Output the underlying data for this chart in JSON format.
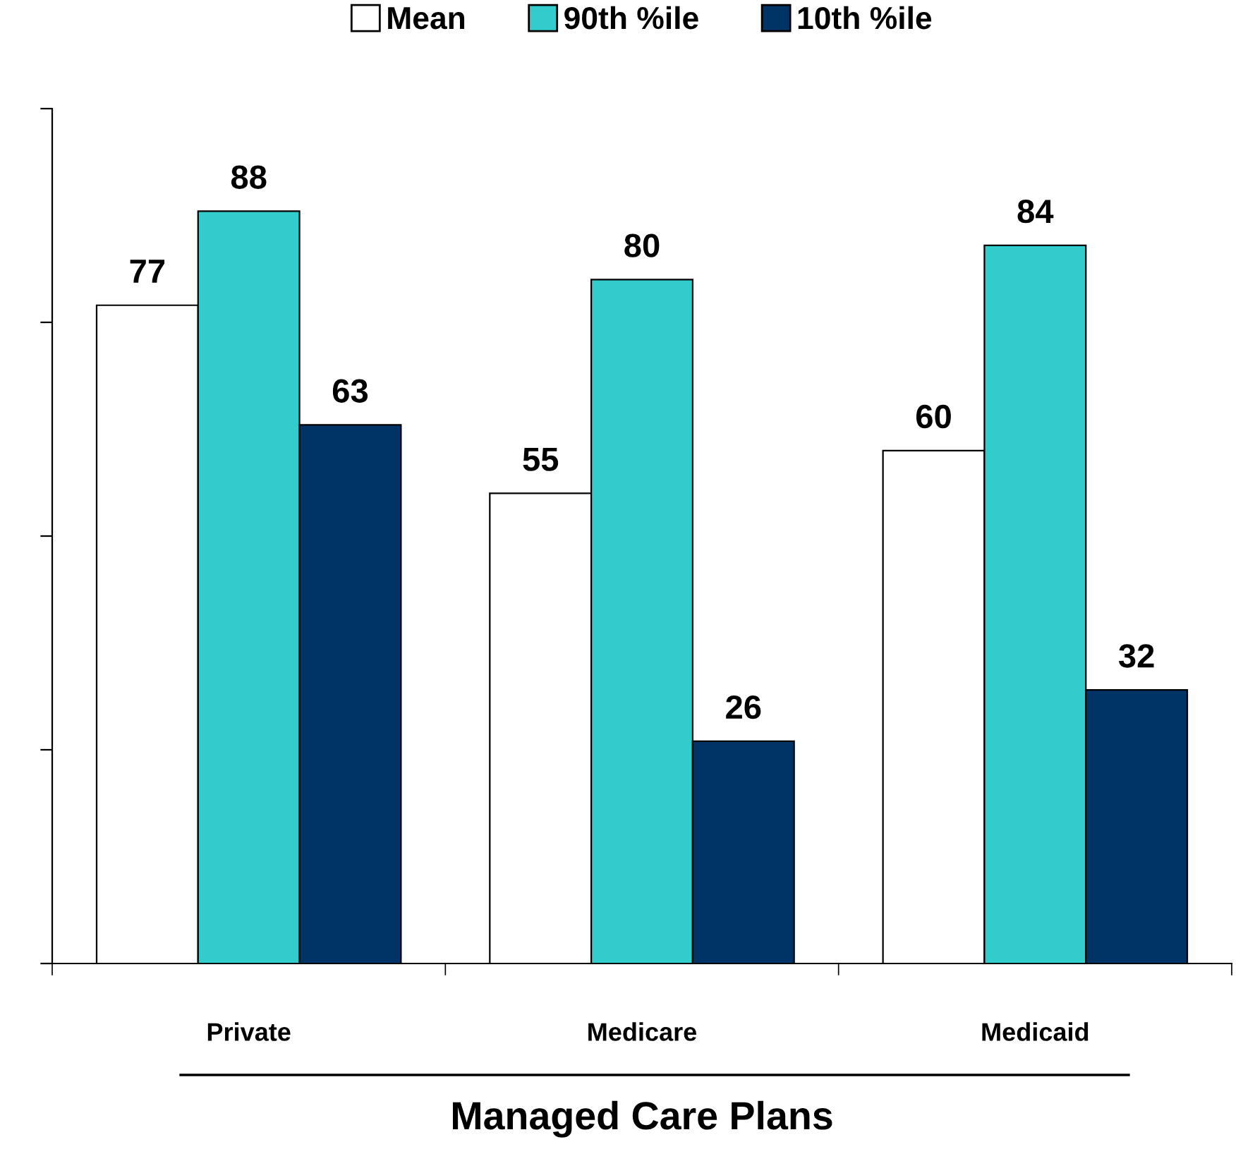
{
  "chart_data": {
    "type": "bar",
    "xlabel": "Managed Care Plans",
    "categories": [
      "Private",
      "Medicare",
      "Medicaid"
    ],
    "series": [
      {
        "name": "Mean",
        "color": "#ffffff",
        "values": [
          77,
          55,
          60
        ]
      },
      {
        "name": "90th %ile",
        "color": "#33cccc",
        "values": [
          88,
          80,
          84
        ]
      },
      {
        "name": "10th %ile",
        "color": "#003366",
        "values": [
          63,
          26,
          32
        ]
      }
    ],
    "ylim": [
      0,
      100
    ],
    "yticks": [
      {
        "value": 0,
        "label": null
      },
      {
        "value": 25,
        "label": null
      },
      {
        "value": 50,
        "label": null
      },
      {
        "value": 75,
        "label": null
      },
      {
        "value": 100,
        "label": null
      }
    ],
    "tick_labels": "x",
    "data_labels": true,
    "legend": "top",
    "grid": false
  }
}
